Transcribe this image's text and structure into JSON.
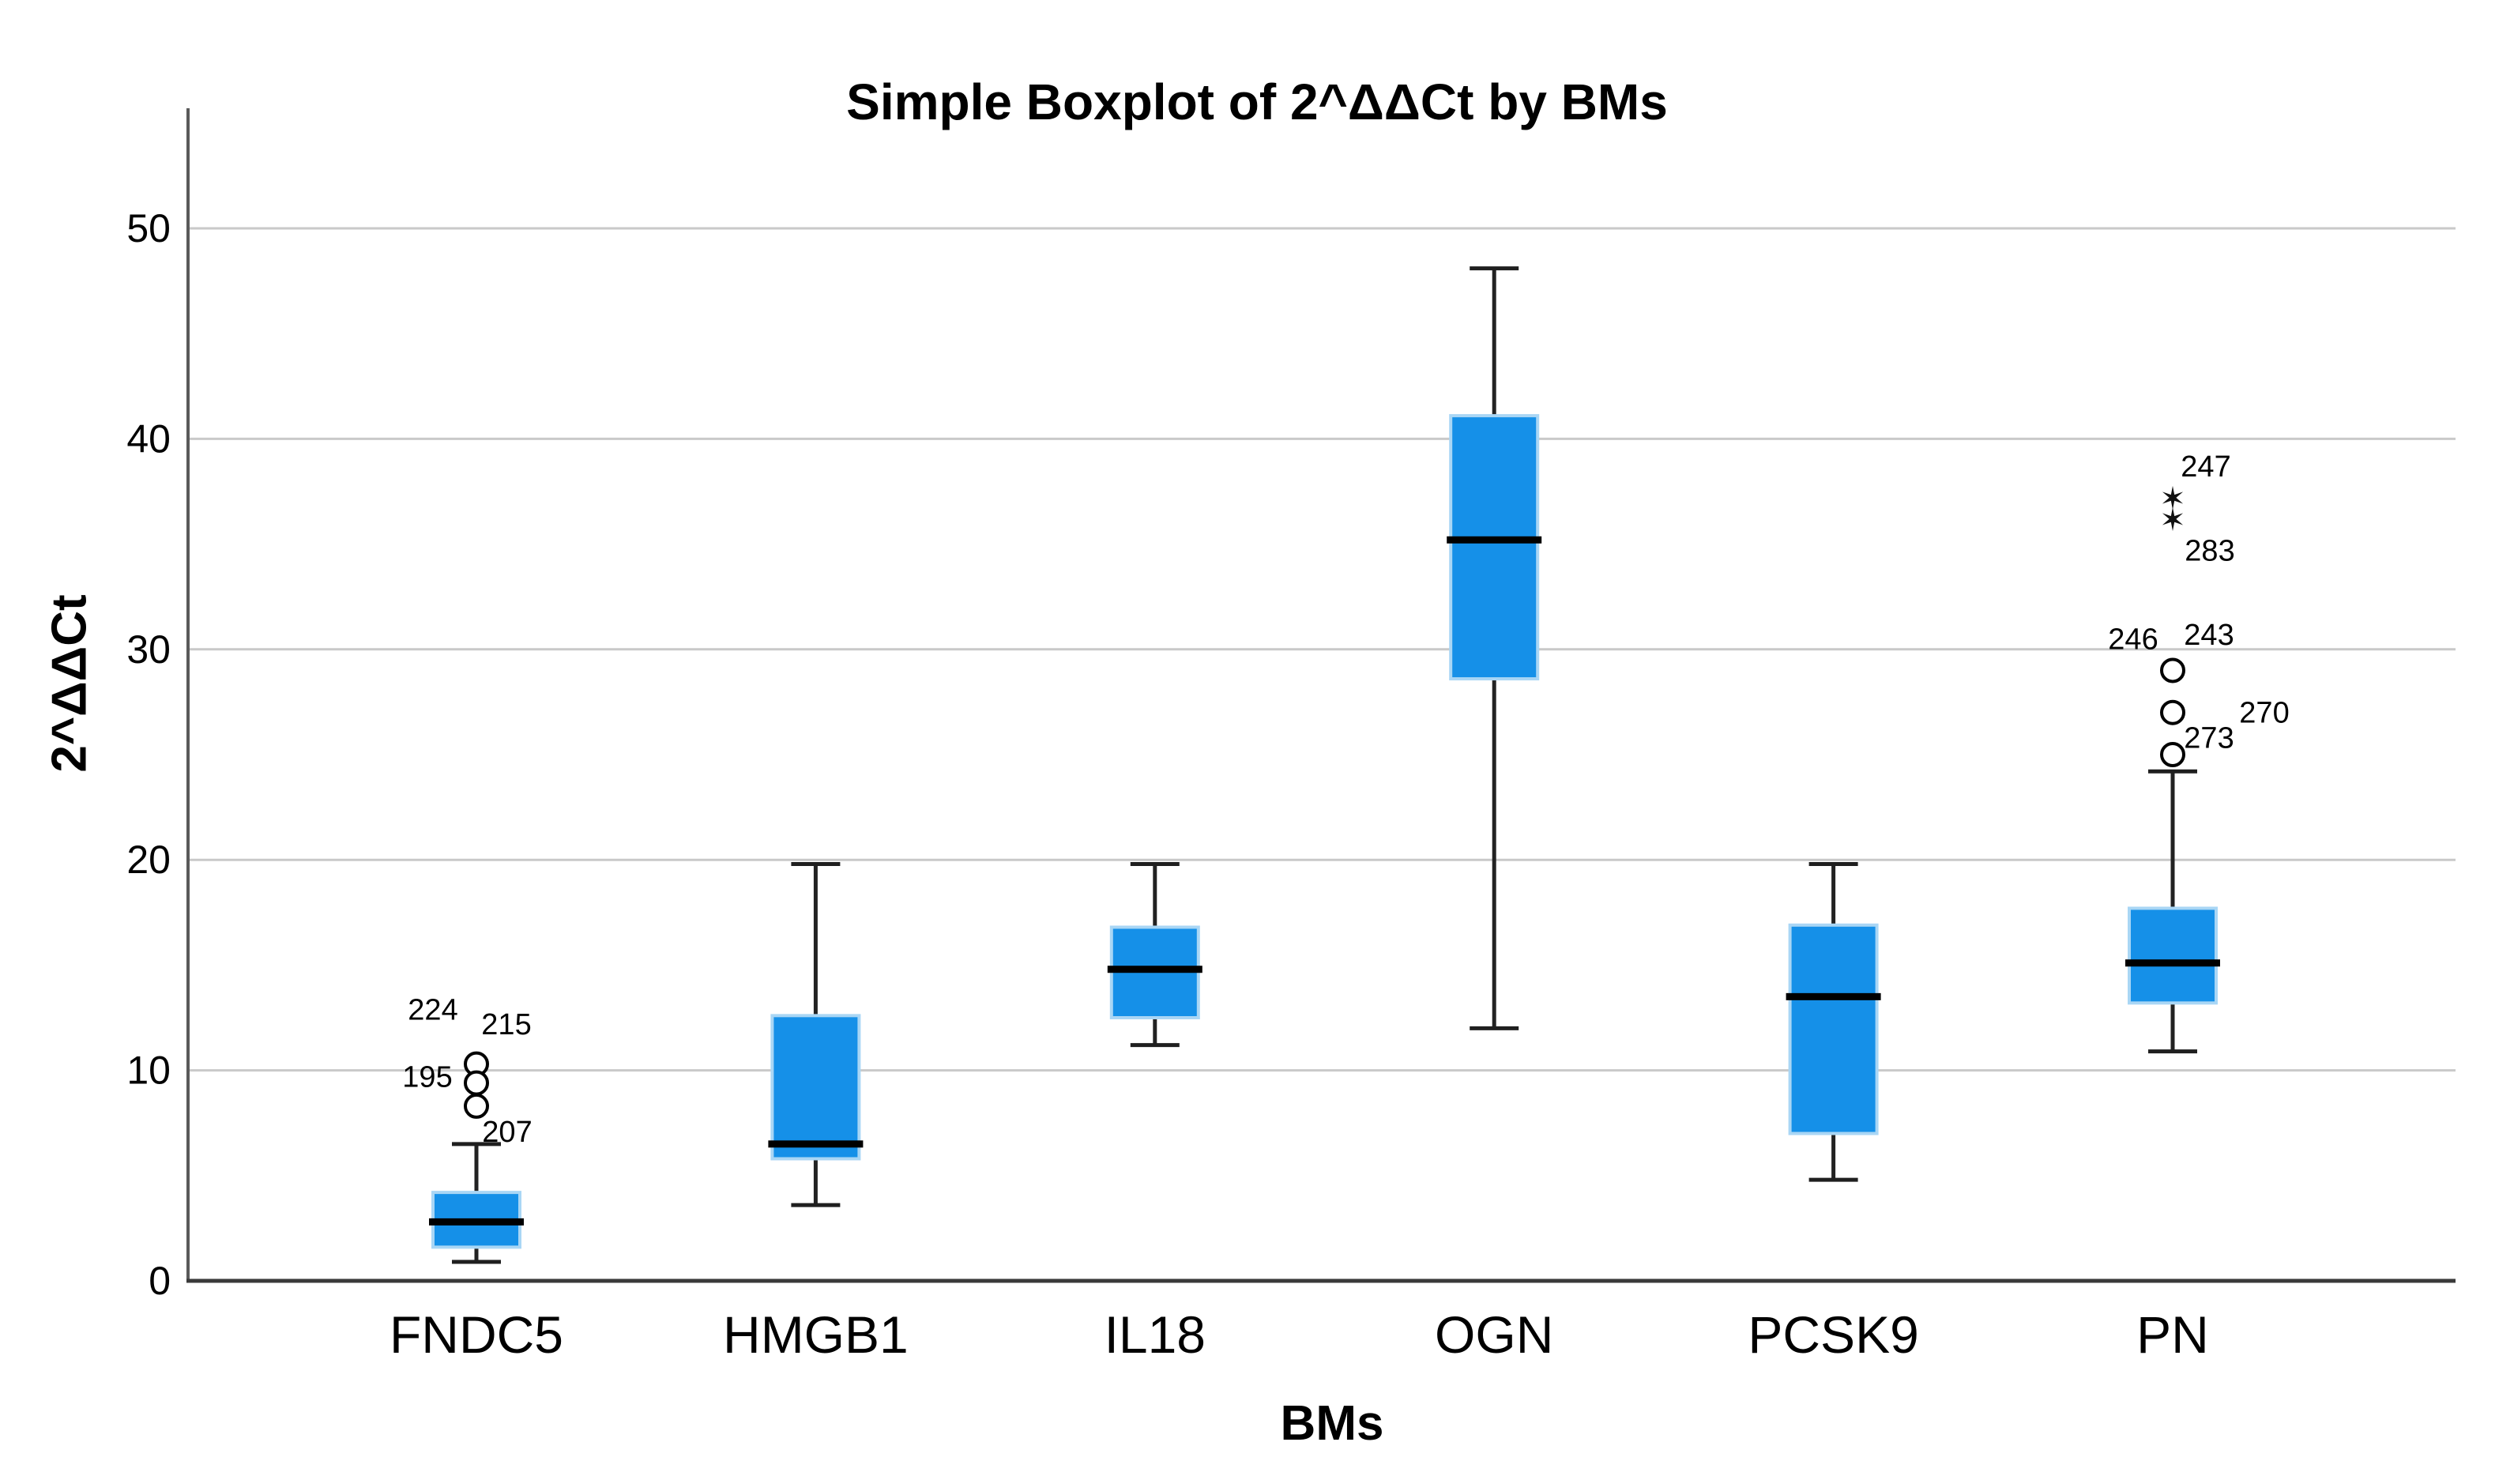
{
  "chart_data": {
    "type": "boxplot",
    "title": "Simple Boxplot of 2^ΔΔCt by BMs",
    "xlabel": "BMs",
    "ylabel": "2^ΔΔCt",
    "ylim": [
      0,
      55
    ],
    "yticks": [
      0,
      10,
      20,
      30,
      40,
      50
    ],
    "grid": "horizontal-light-gray",
    "legend": "none",
    "colors": {
      "box_fill": "#1590E8",
      "box_border": "#A9D6F5",
      "median": "#000000",
      "whisker": "#222222",
      "gridline": "#C9C9C9",
      "axis": "#3A3A3A"
    },
    "categories": [
      "FNDC5",
      "HMGB1",
      "IL18",
      "OGN",
      "PCSK9",
      "PN"
    ],
    "series": [
      {
        "category": "FNDC5",
        "whisker_low": 0.9,
        "q1": 1.6,
        "median": 2.8,
        "q3": 4.2,
        "whisker_high": 6.5,
        "outliers": [
          {
            "marker": "circle",
            "value": 10.3
          },
          {
            "marker": "circle",
            "value": 9.4
          },
          {
            "marker": "circle",
            "value": 8.3
          }
        ],
        "outlier_labels": [
          {
            "text": "224",
            "value": 12.9,
            "dx": -55
          },
          {
            "text": "215",
            "value": 12.2,
            "dx": 38
          },
          {
            "text": "195",
            "value": 9.7,
            "dx": -62
          },
          {
            "text": "207",
            "value": 7.1,
            "dx": 39
          }
        ]
      },
      {
        "category": "HMGB1",
        "whisker_low": 3.6,
        "q1": 5.8,
        "median": 6.5,
        "q3": 12.6,
        "whisker_high": 19.8,
        "outliers": [],
        "outlier_labels": []
      },
      {
        "category": "IL18",
        "whisker_low": 11.2,
        "q1": 12.5,
        "median": 14.8,
        "q3": 16.8,
        "whisker_high": 19.8,
        "outliers": [],
        "outlier_labels": []
      },
      {
        "category": "OGN",
        "whisker_low": 12.0,
        "q1": 28.6,
        "median": 35.2,
        "q3": 41.1,
        "whisker_high": 48.1,
        "outliers": [],
        "outlier_labels": []
      },
      {
        "category": "PCSK9",
        "whisker_low": 4.8,
        "q1": 7.0,
        "median": 13.5,
        "q3": 16.9,
        "whisker_high": 19.8,
        "outliers": [],
        "outlier_labels": []
      },
      {
        "category": "PN",
        "whisker_low": 10.9,
        "q1": 13.2,
        "median": 15.1,
        "q3": 17.7,
        "whisker_high": 24.2,
        "outliers": [
          {
            "marker": "star",
            "value": 37.1
          },
          {
            "marker": "star",
            "value": 36.1
          },
          {
            "marker": "circle",
            "value": 29.0
          },
          {
            "marker": "circle",
            "value": 27.0
          },
          {
            "marker": "circle",
            "value": 25.0
          }
        ],
        "outlier_labels": [
          {
            "text": "247",
            "value": 38.7,
            "dx": 42
          },
          {
            "text": "283",
            "value": 34.7,
            "dx": 47
          },
          {
            "text": "246",
            "value": 30.5,
            "dx": -50
          },
          {
            "text": "243",
            "value": 30.7,
            "dx": 46
          },
          {
            "text": "270",
            "value": 27.0,
            "dx": 116
          },
          {
            "text": "273",
            "value": 25.8,
            "dx": 46
          }
        ]
      }
    ]
  }
}
